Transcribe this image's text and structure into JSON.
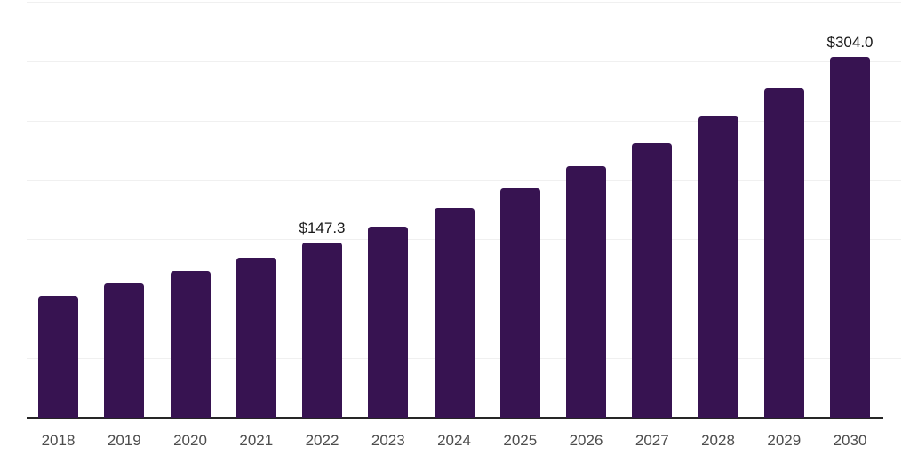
{
  "chart_data": {
    "type": "bar",
    "title": "",
    "xlabel": "",
    "ylabel": "",
    "categories": [
      "2018",
      "2019",
      "2020",
      "2021",
      "2022",
      "2023",
      "2024",
      "2025",
      "2026",
      "2027",
      "2028",
      "2029",
      "2030"
    ],
    "values": [
      102.8,
      112.7,
      123.2,
      134.6,
      147.3,
      161.2,
      176.5,
      193.1,
      211.4,
      231.4,
      253.7,
      277.6,
      304.0
    ],
    "data_labels": [
      {
        "category": "2022",
        "text": "$147.3"
      },
      {
        "category": "2030",
        "text": "$304.0"
      }
    ],
    "ylim": [
      0,
      350
    ],
    "gridline_interval": 50,
    "grid": true,
    "legend": false,
    "y_axis_labels_visible": false
  },
  "colors": {
    "bar": "#371351",
    "axis_line": "#262626",
    "gridline": "#f0f0f0",
    "tick_label": "#4d4d4d",
    "data_label": "#1a1a1a",
    "background": "#ffffff"
  }
}
